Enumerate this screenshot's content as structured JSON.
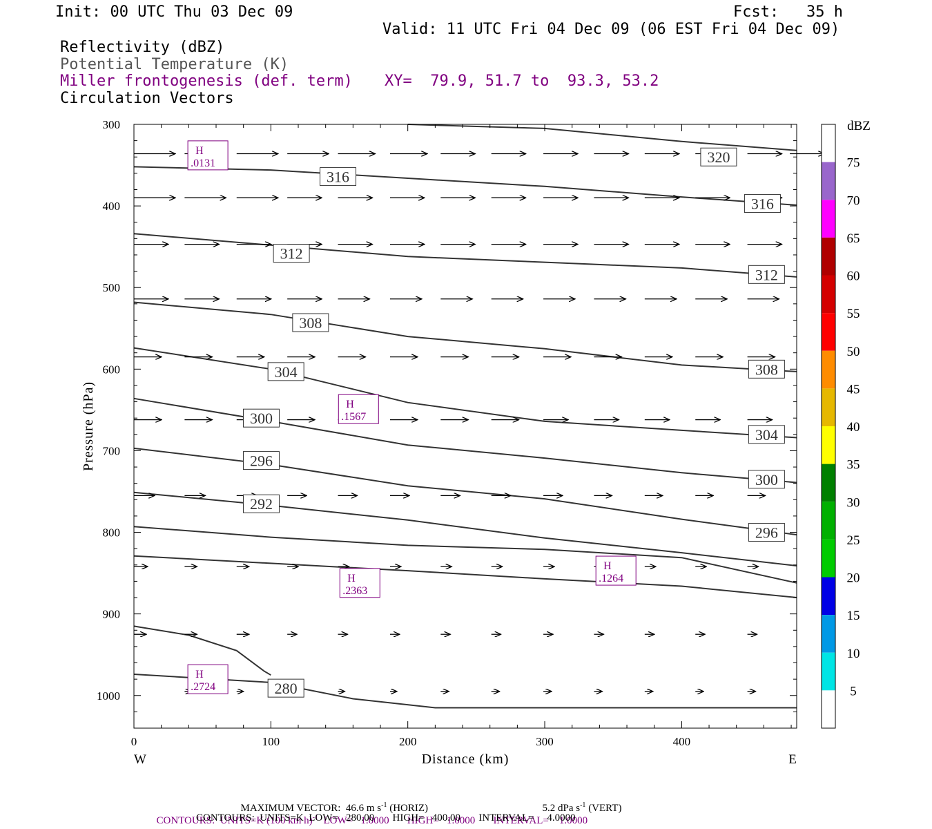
{
  "header": {
    "init": "Init: 00 UTC Thu 03 Dec 09",
    "fcst": "Fcst:   35 h",
    "valid": "Valid: 11 UTC Fri 04 Dec 09 (06 EST Fri 04 Dec 09)",
    "field1": "Reflectivity (dBZ)",
    "field2": "Potential Temperature (K)",
    "field3": "Miller frontogenesis (def. term)",
    "xy": "XY=  79.9, 51.7 to  93.3, 53.2",
    "field4": "Circulation Vectors"
  },
  "footer": {
    "max_vector": "MAXIMUM VECTOR:  46.6 m s",
    "max_vector_horiz_unit": "-1",
    "max_vector_horiz_label": " (HORIZ)",
    "max_vector_vert": "5.2 dPa s",
    "max_vector_vert_unit": "-1",
    "max_vector_vert_label": " (VERT)",
    "contours_front_pre": "CONTOURS:  UNITS=K (100 km h)",
    "contours_front_sup": "-1",
    "contours_front_post": "  LOW=   1.0000       HIGH=   1.0000       INTERVAL=    1.0000",
    "contours_theta": "CONTOURS:  UNITS=K  LOW=   280.00       HIGH=   400.00       INTERVAL=     4.0000"
  },
  "colors": {
    "theta": "#333333",
    "purple": "#800080",
    "vector": "#000000"
  },
  "chart_data": {
    "type": "line",
    "xlabel": "Distance (km)",
    "ylabel": "Pressure (hPa)",
    "xlim": [
      0,
      484
    ],
    "ylim": [
      1040,
      300
    ],
    "x_ticks": [
      0,
      100,
      200,
      300,
      400
    ],
    "y_ticks": [
      300,
      400,
      500,
      600,
      700,
      800,
      900,
      1000
    ],
    "x_end_labels": {
      "left": "W",
      "right": "E"
    },
    "colorbar": {
      "unit": "dBZ",
      "levels": [
        5,
        10,
        15,
        20,
        25,
        30,
        35,
        40,
        45,
        50,
        55,
        60,
        65,
        70,
        75
      ],
      "colors": [
        "#ffffff",
        "#00e5e5",
        "#0099e6",
        "#0000e6",
        "#00cc00",
        "#00b000",
        "#008000",
        "#ffff00",
        "#e6b800",
        "#ff8c00",
        "#ff0000",
        "#d40000",
        "#b00000",
        "#ff00ff",
        "#9966cc",
        "#ffffff"
      ]
    },
    "theta_contours": [
      {
        "label": "320",
        "x": [
          200,
          300,
          400,
          484
        ],
        "y": [
          300,
          305,
          321,
          332
        ],
        "labels_at": [
          [
            427,
            340
          ]
        ]
      },
      {
        "label": "316",
        "x": [
          0,
          100,
          200,
          300,
          400,
          484
        ],
        "y": [
          352,
          356,
          366,
          376,
          389,
          399
        ],
        "labels_at": [
          [
            149,
            364
          ],
          [
            459,
            397
          ]
        ]
      },
      {
        "label": "312",
        "x": [
          0,
          100,
          200,
          300,
          400,
          484
        ],
        "y": [
          434,
          448,
          462,
          469,
          476,
          487
        ],
        "labels_at": [
          [
            115,
            458
          ],
          [
            462,
            484
          ]
        ]
      },
      {
        "label": "308",
        "x": [
          0,
          100,
          200,
          300,
          400,
          484
        ],
        "y": [
          518,
          533,
          560,
          575,
          595,
          603
        ],
        "labels_at": [
          [
            129,
            543
          ],
          [
            462,
            600
          ]
        ]
      },
      {
        "label": "304",
        "x": [
          0,
          100,
          200,
          300,
          400,
          484
        ],
        "y": [
          574,
          600,
          641,
          664,
          675,
          684
        ],
        "labels_at": [
          [
            111,
            603
          ],
          [
            462,
            680
          ]
        ]
      },
      {
        "label": "300",
        "x": [
          0,
          100,
          200,
          300,
          400,
          484
        ],
        "y": [
          636,
          664,
          693,
          709,
          727,
          739
        ],
        "labels_at": [
          [
            93,
            660
          ],
          [
            462,
            735
          ]
        ]
      },
      {
        "label": "296",
        "x": [
          0,
          100,
          200,
          300,
          400,
          484
        ],
        "y": [
          697,
          717,
          743,
          759,
          784,
          803
        ],
        "labels_at": [
          [
            93,
            712
          ],
          [
            462,
            800
          ]
        ]
      },
      {
        "label": "292",
        "x": [
          0,
          100,
          200,
          300,
          400,
          484
        ],
        "y": [
          751,
          767,
          785,
          807,
          825,
          841
        ],
        "labels_at": [
          [
            93,
            765
          ]
        ]
      },
      {
        "label": "",
        "x": [
          0,
          100,
          200,
          300,
          400,
          484
        ],
        "y": [
          793,
          806,
          816,
          821,
          831,
          862
        ],
        "labels_at": []
      },
      {
        "label": "",
        "x": [
          0,
          100,
          200,
          300,
          400,
          484
        ],
        "y": [
          829,
          838,
          847,
          857,
          866,
          880
        ],
        "labels_at": []
      },
      {
        "label": "",
        "x": [
          0,
          40,
          75,
          95,
          100
        ],
        "y": [
          915,
          926,
          945,
          970,
          975
        ],
        "labels_at": []
      },
      {
        "label": "280",
        "x": [
          0,
          100,
          160,
          220,
          300,
          400,
          484
        ],
        "y": [
          974,
          984,
          1004,
          1015,
          1015,
          1015,
          1015
        ],
        "labels_at": [
          [
            111,
            991
          ]
        ]
      }
    ],
    "frontogenesis_highs": [
      {
        "x": 54,
        "p": 338,
        "value": ".0131"
      },
      {
        "x": 164,
        "p": 649,
        "value": ".1567"
      },
      {
        "x": 165,
        "p": 862,
        "value": ".2363"
      },
      {
        "x": 352,
        "p": 847,
        "value": ".1264"
      },
      {
        "x": 54,
        "p": 980,
        "value": ".2724"
      }
    ],
    "vector_levels": [
      {
        "p": 336,
        "x": [
          0,
          37,
          75,
          112,
          149,
          187,
          224,
          261,
          299,
          336,
          373,
          410,
          448,
          479
        ],
        "u": [
          30,
          30,
          30,
          30,
          27,
          27,
          25,
          25,
          25,
          25,
          25,
          25,
          25,
          25
        ]
      },
      {
        "p": 390,
        "x": [
          0,
          37,
          75,
          112,
          149,
          187,
          224,
          261,
          299,
          336,
          373,
          410,
          448
        ],
        "u": [
          30,
          30,
          30,
          25,
          25,
          25,
          25,
          25,
          25,
          25,
          25,
          25,
          25
        ]
      },
      {
        "p": 447,
        "x": [
          0,
          37,
          75,
          112,
          149,
          187,
          224,
          261,
          299,
          336,
          373,
          410,
          448
        ],
        "u": [
          25,
          25,
          25,
          25,
          25,
          25,
          25,
          25,
          25,
          25,
          25,
          25,
          25
        ]
      },
      {
        "p": 514,
        "x": [
          0,
          37,
          75,
          112,
          149,
          187,
          224,
          261,
          299,
          336,
          373,
          410,
          448
        ],
        "u": [
          25,
          25,
          25,
          25,
          23,
          23,
          23,
          23,
          23,
          23,
          23,
          23,
          23
        ]
      },
      {
        "p": 585,
        "x": [
          0,
          37,
          75,
          112,
          149,
          187,
          224,
          261,
          299,
          336,
          373,
          410,
          448
        ],
        "u": [
          20,
          20,
          20,
          20,
          20,
          20,
          20,
          20,
          20,
          20,
          20,
          20,
          20
        ]
      },
      {
        "p": 662,
        "x": [
          0,
          37,
          75,
          112,
          149,
          187,
          224,
          261,
          299,
          336,
          373,
          410,
          448
        ],
        "u": [
          20,
          20,
          20,
          20,
          20,
          20,
          20,
          20,
          18,
          18,
          18,
          18,
          18
        ]
      },
      {
        "p": 755,
        "x": [
          0,
          37,
          75,
          112,
          149,
          187,
          224,
          261,
          299,
          336,
          373,
          410,
          448
        ],
        "u": [
          15,
          15,
          15,
          14,
          14,
          14,
          14,
          14,
          14,
          13,
          13,
          13,
          13
        ]
      },
      {
        "p": 842,
        "x": [
          0,
          37,
          75,
          112,
          149,
          187,
          224,
          261,
          299,
          336,
          373,
          410,
          448
        ],
        "u": [
          10,
          9,
          9,
          8,
          8,
          8,
          8,
          8,
          8,
          8,
          8,
          8,
          8
        ]
      },
      {
        "p": 925,
        "x": [
          0,
          37,
          75,
          112,
          149,
          187,
          224,
          261,
          299,
          336,
          373,
          410,
          448
        ],
        "u": [
          9,
          9,
          9,
          7,
          7,
          7,
          7,
          7,
          7,
          7,
          7,
          7,
          7
        ]
      },
      {
        "p": 995,
        "x": [
          37,
          75,
          112,
          149,
          187,
          224,
          261,
          299,
          336,
          373,
          410,
          448
        ],
        "u": [
          5,
          5,
          5,
          5,
          5,
          6,
          6,
          6,
          6,
          6,
          6,
          6
        ]
      }
    ]
  }
}
